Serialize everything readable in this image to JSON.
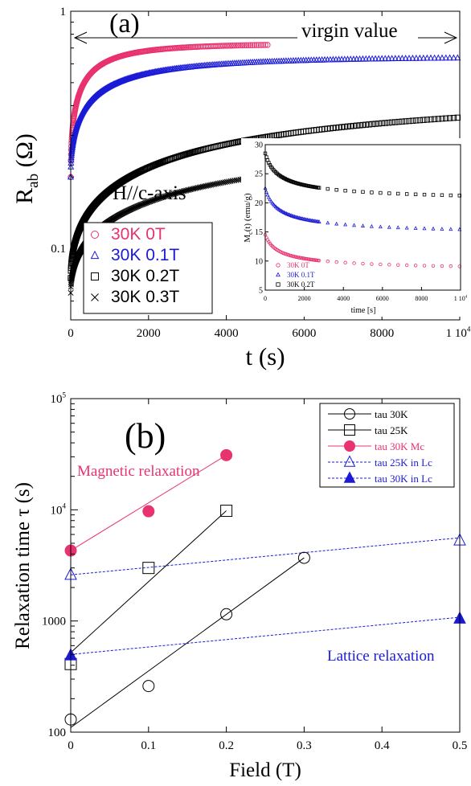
{
  "colors": {
    "pink": "#e8336f",
    "blue": "#1b1bd6",
    "black": "#000000"
  },
  "chart_data": [
    {
      "type": "scatter",
      "panel_label": "(a)",
      "xlabel": "t (s)",
      "ylabel_main": "R",
      "ylabel_sub": "ab",
      "ylabel_unit": " (Ω)",
      "yscale": "log",
      "xlim": [
        0,
        10000
      ],
      "ylim": [
        0.05,
        1
      ],
      "x_ticks": [
        {
          "value": 0,
          "label": "0"
        },
        {
          "value": 2000,
          "label": "2000"
        },
        {
          "value": 4000,
          "label": "4000"
        },
        {
          "value": 6000,
          "label": "6000"
        },
        {
          "value": 8000,
          "label": "8000"
        }
      ],
      "x_tick_last": {
        "value": 10000,
        "base": "1 10",
        "exp": "4"
      },
      "y_ticks": [
        {
          "value": 1,
          "label": "1"
        },
        {
          "value": 0.1,
          "label": "0.1"
        }
      ],
      "annotations": {
        "virgin": "virgin value",
        "field_dir": "H//c-axis"
      },
      "legend_position": "bottom-left",
      "series": [
        {
          "name": "30K 0T",
          "marker": "circle",
          "color": "#e8336f",
          "x_end": 5100,
          "y0": 0.2,
          "yinf": 0.73,
          "tau": 230
        },
        {
          "name": "30K 0.1T",
          "marker": "triangle",
          "color": "#1b1bd6",
          "x_end": 10000,
          "y0": 0.2,
          "yinf": 0.645,
          "tau": 520
        },
        {
          "name": "30K 0.2T",
          "marker": "square",
          "color": "#000000",
          "x_end": 10000,
          "y0": 0.075,
          "yinf": 0.45,
          "tau": 2400
        },
        {
          "name": "30K 0.3T",
          "marker": "x",
          "color": "#000000",
          "x_end": 7900,
          "y0": 0.065,
          "yinf": 0.3,
          "tau": 2700
        }
      ],
      "inset": {
        "type": "scatter",
        "xlabel": "time [s]",
        "ylabel_main": "M",
        "ylabel_sub": "c",
        "ylabel_rest": "(t)   (emu/g)",
        "xlim": [
          0,
          10000
        ],
        "ylim": [
          5,
          30
        ],
        "x_ticks": [
          {
            "value": 0,
            "label": "0"
          },
          {
            "value": 2000,
            "label": "2000"
          },
          {
            "value": 4000,
            "label": "4000"
          },
          {
            "value": 6000,
            "label": "6000"
          },
          {
            "value": 8000,
            "label": "8000"
          }
        ],
        "x_tick_last": {
          "value": 10000,
          "base": "1 10",
          "exp": "4"
        },
        "y_ticks": [
          {
            "value": 5,
            "label": "5"
          },
          {
            "value": 10,
            "label": "10"
          },
          {
            "value": 15,
            "label": "15"
          },
          {
            "value": 20,
            "label": "20"
          },
          {
            "value": 25,
            "label": "25"
          },
          {
            "value": 30,
            "label": "30"
          }
        ],
        "legend_position": "bottom-left",
        "series": [
          {
            "name": "30K 0T",
            "marker": "circle",
            "color": "#e8336f",
            "start": 14.5,
            "end": 8.0
          },
          {
            "name": "30K 0.1T",
            "marker": "triangle",
            "color": "#1b1bd6",
            "start": 22.5,
            "end": 14.0
          },
          {
            "name": "30K 0.2T",
            "marker": "square",
            "color": "#000000",
            "start": 28.5,
            "end": 19.8
          }
        ]
      }
    },
    {
      "type": "scatter",
      "panel_label": "(b)",
      "xlabel": "Field (T)",
      "ylabel": "Relaxation time  τ (s)",
      "yscale": "log",
      "xlim": [
        0,
        0.5
      ],
      "ylim": [
        100,
        100000
      ],
      "x_ticks": [
        {
          "value": 0,
          "label": "0"
        },
        {
          "value": 0.1,
          "label": "0.1"
        },
        {
          "value": 0.2,
          "label": "0.2"
        },
        {
          "value": 0.3,
          "label": "0.3"
        },
        {
          "value": 0.4,
          "label": "0.4"
        },
        {
          "value": 0.5,
          "label": "0.5"
        }
      ],
      "y_ticks": [
        {
          "value": 100,
          "base": "100",
          "exp": ""
        },
        {
          "value": 1000,
          "base": "1000",
          "exp": ""
        },
        {
          "value": 10000,
          "base": "10",
          "exp": "4"
        },
        {
          "value": 100000,
          "base": "10",
          "exp": "5"
        }
      ],
      "annotations": {
        "magnetic": "Magnetic relaxation",
        "lattice": "Lattice relaxation"
      },
      "legend_position": "top-right",
      "series": [
        {
          "name": "tau 30K",
          "marker": "circle",
          "filled": false,
          "color": "#000000",
          "dash": false,
          "x": [
            0,
            0.1,
            0.2,
            0.3
          ],
          "y": [
            130,
            260,
            1150,
            3700
          ],
          "fit": [
            [
              0,
              110
            ],
            [
              0.3,
              3700
            ]
          ]
        },
        {
          "name": "tau 25K",
          "marker": "square",
          "filled": false,
          "color": "#000000",
          "dash": false,
          "x": [
            0,
            0.1,
            0.2
          ],
          "y": [
            410,
            3000,
            9800
          ],
          "fit": [
            [
              0,
              520
            ],
            [
              0.2,
              9800
            ]
          ]
        },
        {
          "name": "tau 30K Mc",
          "marker": "circle",
          "filled": true,
          "color": "#e8336f",
          "dash": false,
          "x": [
            0,
            0.1,
            0.2
          ],
          "y": [
            4300,
            9700,
            31000
          ],
          "fit": [
            [
              0,
              4300
            ],
            [
              0.2,
              31000
            ]
          ]
        },
        {
          "name": "tau 25K in Lc",
          "marker": "triangle",
          "filled": false,
          "color": "#1b1bd6",
          "dash": true,
          "x": [
            0,
            0.5
          ],
          "y": [
            2600,
            5300
          ],
          "fit": [
            [
              0,
              2600
            ],
            [
              0.5,
              5600
            ]
          ]
        },
        {
          "name": "tau 30K in Lc",
          "marker": "triangle",
          "filled": true,
          "color": "#1b1bd6",
          "dash": true,
          "x": [
            0,
            0.5
          ],
          "y": [
            490,
            1050
          ],
          "fit": [
            [
              0,
              500
            ],
            [
              0.5,
              1080
            ]
          ]
        }
      ]
    }
  ]
}
